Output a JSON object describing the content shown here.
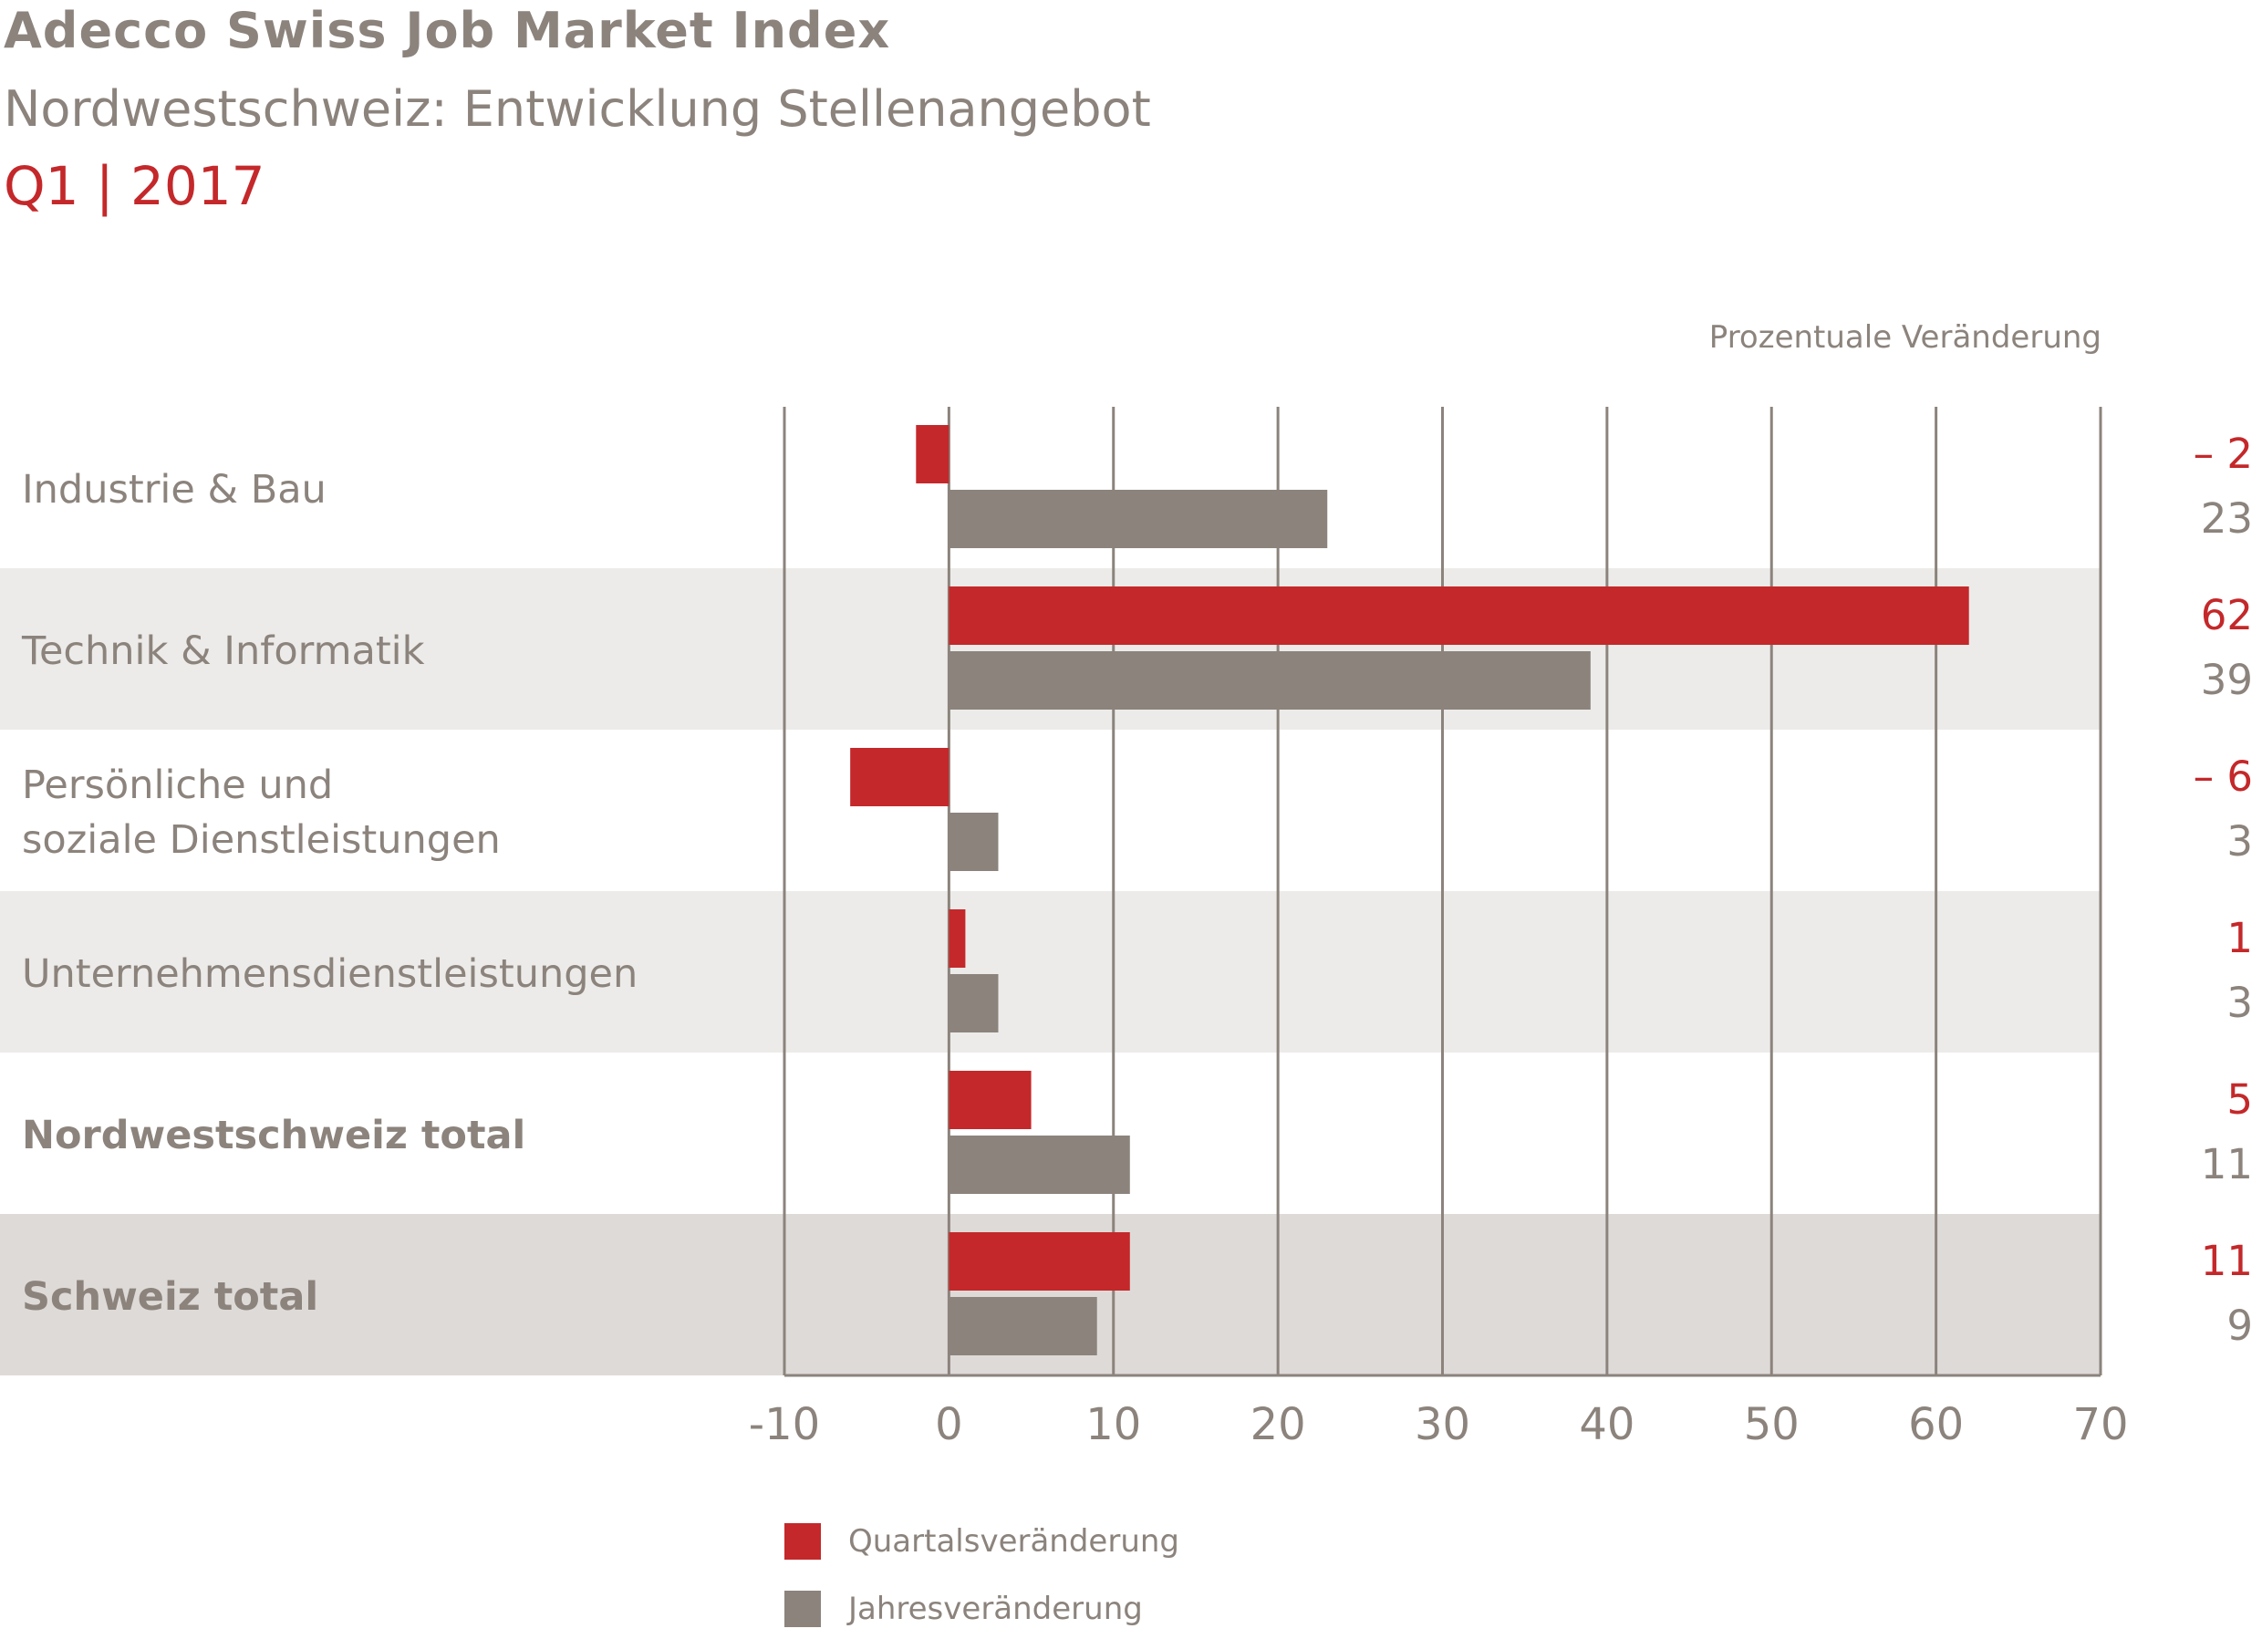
{
  "title": "Adecco Swiss Job Market Index",
  "subtitle": "Nordwestschweiz: Entwicklung Stellenangebot",
  "period": "Q1 | 2017",
  "unit_label": "Prozentuale Veränderung",
  "colors": {
    "quarter": "#c4282a",
    "year": "#8b837c",
    "band_light": "#ecebe9",
    "band_dark": "#dedad7",
    "grid": "#8b837c"
  },
  "chart_data": {
    "type": "bar",
    "orientation": "horizontal",
    "categories": [
      [
        "Industrie & Bau"
      ],
      [
        "Technik & Informatik"
      ],
      [
        "Persönliche und",
        "soziale Dienstleistungen"
      ],
      [
        "Unternehmensdienstleistungen"
      ],
      [
        "Nordwestschweiz total"
      ],
      [
        "Schweiz total"
      ]
    ],
    "bold_categories": [
      4,
      5
    ],
    "series": [
      {
        "name": "Quartalsveränderung",
        "values": [
          -2,
          62,
          -6,
          1,
          5,
          11
        ],
        "labels": [
          "– 2",
          "62",
          "– 6",
          "1",
          "5",
          "11"
        ]
      },
      {
        "name": "Jahresveränderung",
        "values": [
          23,
          39,
          3,
          3,
          11,
          9
        ],
        "labels": [
          "23",
          "39",
          "3",
          "3",
          "11",
          "9"
        ]
      }
    ],
    "xlim": [
      -10,
      70
    ],
    "xticks": [
      -10,
      0,
      10,
      20,
      30,
      40,
      50,
      60,
      70
    ],
    "xtick_labels": [
      "-10",
      "0",
      "10",
      "20",
      "30",
      "40",
      "50",
      "60",
      "70"
    ],
    "grid": true,
    "legend": "bottom"
  }
}
